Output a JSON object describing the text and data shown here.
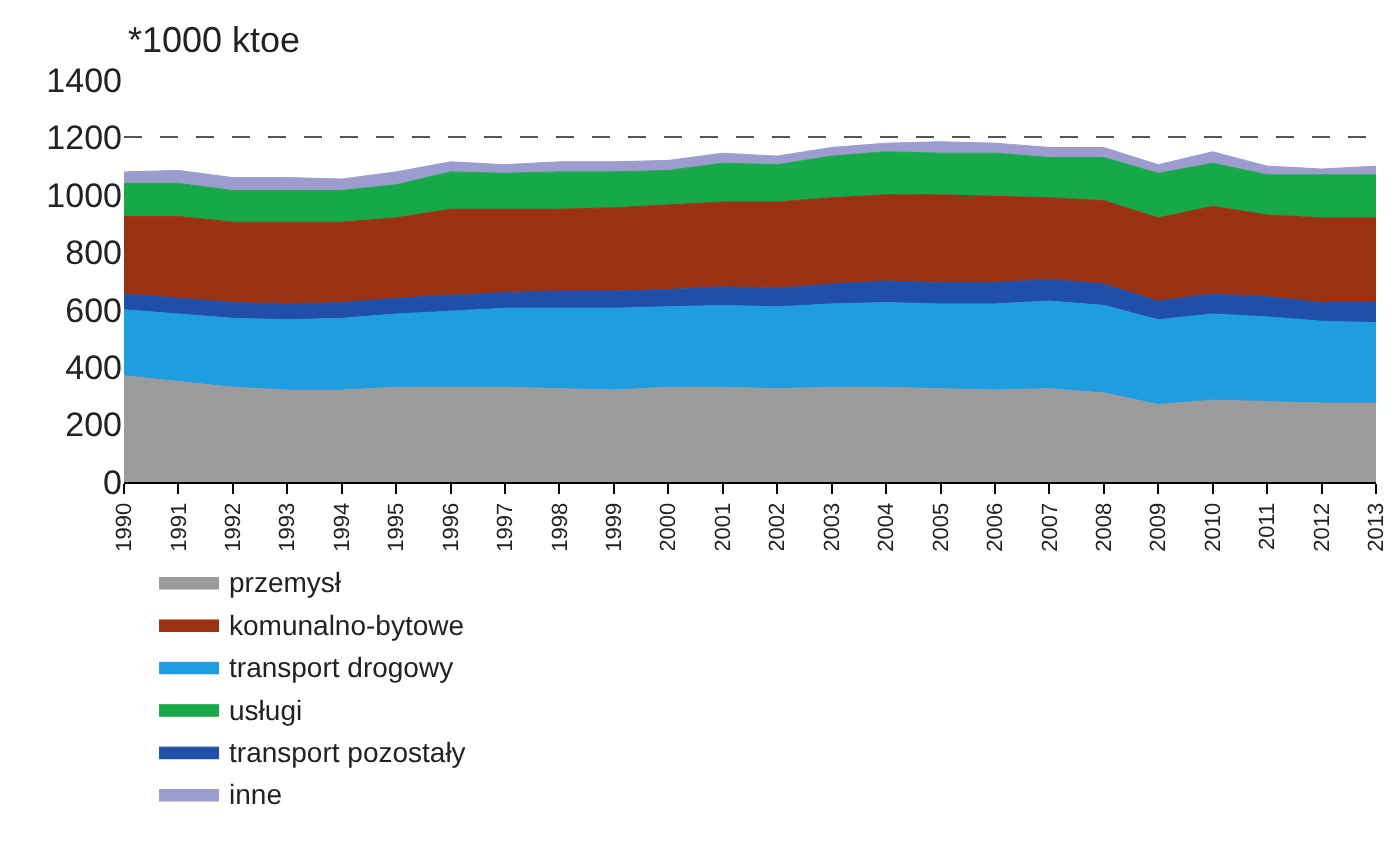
{
  "chart_data": {
    "type": "area",
    "stacked": true,
    "ylabel": "*1000 ktoe",
    "x": [
      1990,
      1991,
      1992,
      1993,
      1994,
      1995,
      1996,
      1997,
      1998,
      1999,
      2000,
      2001,
      2002,
      2003,
      2004,
      2005,
      2006,
      2007,
      2008,
      2009,
      2010,
      2011,
      2012,
      2013
    ],
    "xlim": [
      1990,
      2013
    ],
    "xticks": [
      1990,
      1991,
      1992,
      1993,
      1994,
      1995,
      1996,
      1997,
      1998,
      1999,
      2000,
      2001,
      2002,
      2003,
      2004,
      2005,
      2006,
      2007,
      2008,
      2009,
      2010,
      2011,
      2012,
      2013
    ],
    "ylim": [
      0,
      1400
    ],
    "yticks": [
      0,
      200,
      400,
      600,
      800,
      1000,
      1200,
      1400
    ],
    "grid": "y",
    "line_style": "dashed",
    "legend": "bottom",
    "series": [
      {
        "name": "przemysł",
        "color": "#9b9b9b",
        "values": [
          370,
          350,
          330,
          320,
          320,
          330,
          330,
          330,
          325,
          320,
          330,
          330,
          325,
          330,
          330,
          325,
          320,
          325,
          310,
          270,
          285,
          280,
          275,
          275
        ]
      },
      {
        "name": "transport drogowy",
        "color": "#1e9ee0",
        "values": [
          230,
          235,
          240,
          245,
          250,
          255,
          265,
          275,
          280,
          285,
          280,
          285,
          285,
          290,
          295,
          295,
          300,
          305,
          305,
          295,
          300,
          295,
          285,
          280
        ]
      },
      {
        "name": "transport pozostały",
        "color": "#1f4fa8",
        "values": [
          55,
          55,
          55,
          55,
          55,
          55,
          55,
          55,
          60,
          60,
          60,
          65,
          65,
          70,
          75,
          75,
          75,
          75,
          75,
          65,
          70,
          70,
          65,
          70
        ]
      },
      {
        "name": "komunalno-bytowe",
        "color": "#9a3212",
        "values": [
          270,
          285,
          280,
          285,
          280,
          280,
          300,
          290,
          285,
          290,
          295,
          295,
          300,
          300,
          300,
          305,
          300,
          285,
          290,
          290,
          305,
          285,
          295,
          295
        ]
      },
      {
        "name": "usługi",
        "color": "#17a84a",
        "values": [
          115,
          115,
          110,
          110,
          110,
          115,
          130,
          125,
          130,
          125,
          120,
          135,
          130,
          145,
          150,
          145,
          150,
          140,
          150,
          155,
          150,
          140,
          150,
          150
        ]
      },
      {
        "name": "inne",
        "color": "#9c9ccf",
        "values": [
          40,
          45,
          45,
          45,
          40,
          45,
          35,
          30,
          35,
          35,
          35,
          35,
          30,
          30,
          30,
          40,
          35,
          35,
          35,
          30,
          40,
          30,
          20,
          30
        ]
      }
    ]
  }
}
